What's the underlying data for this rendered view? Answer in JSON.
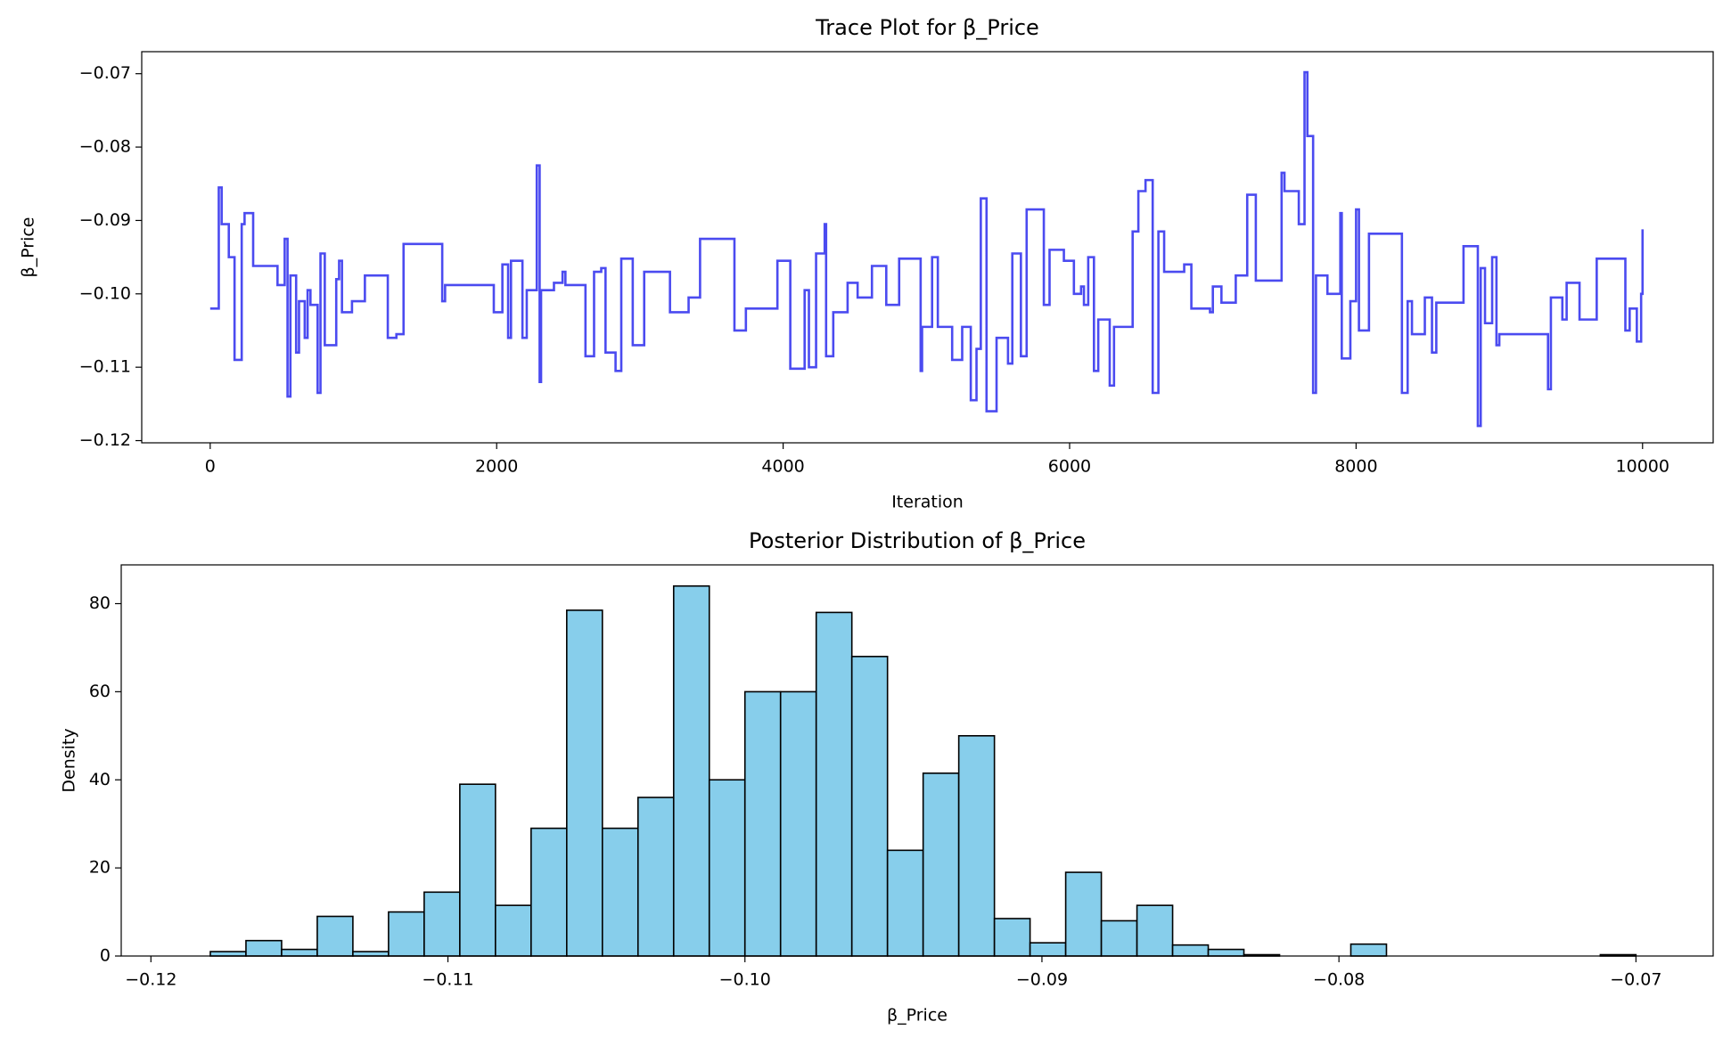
{
  "chart_data": [
    {
      "type": "line",
      "title": "Trace Plot for β_Price",
      "xlabel": "Iteration",
      "ylabel": "β_Price",
      "drawstyle": "steps-post",
      "color": "#4b4bf0",
      "xlim": [
        -478,
        10493
      ],
      "ylim": [
        -0.1203,
        -0.067
      ],
      "xticks": [
        0,
        2000,
        4000,
        6000,
        8000,
        10000
      ],
      "yticks": [
        {
          "value": -0.12,
          "label": "−0.12"
        },
        {
          "value": -0.11,
          "label": "−0.11"
        },
        {
          "value": -0.1,
          "label": "−0.10"
        },
        {
          "value": -0.09,
          "label": "−0.09"
        },
        {
          "value": -0.08,
          "label": "−0.08"
        },
        {
          "value": -0.07,
          "label": "−0.07"
        }
      ],
      "x": [
        0,
        60,
        80,
        130,
        170,
        220,
        240,
        300,
        470,
        520,
        540,
        560,
        600,
        620,
        660,
        680,
        700,
        750,
        770,
        800,
        880,
        900,
        920,
        990,
        1080,
        1240,
        1300,
        1350,
        1620,
        1640,
        1980,
        2040,
        2080,
        2100,
        2180,
        2210,
        2280,
        2300,
        2310,
        2400,
        2460,
        2480,
        2620,
        2680,
        2730,
        2760,
        2830,
        2870,
        2950,
        3030,
        3210,
        3340,
        3420,
        3660,
        3740,
        3960,
        4050,
        4150,
        4180,
        4230,
        4290,
        4300,
        4350,
        4450,
        4520,
        4620,
        4720,
        4810,
        4960,
        4970,
        5040,
        5080,
        5180,
        5250,
        5310,
        5350,
        5380,
        5420,
        5490,
        5570,
        5600,
        5660,
        5700,
        5820,
        5860,
        5960,
        6030,
        6080,
        6100,
        6130,
        6170,
        6200,
        6280,
        6310,
        6440,
        6480,
        6530,
        6580,
        6620,
        6660,
        6800,
        6850,
        6980,
        7000,
        7060,
        7160,
        7240,
        7300,
        7480,
        7500,
        7600,
        7640,
        7660,
        7700,
        7720,
        7800,
        7890,
        7900,
        7960,
        8000,
        8020,
        8090,
        8320,
        8360,
        8390,
        8480,
        8530,
        8560,
        8750,
        8850,
        8870,
        8900,
        8950,
        8980,
        9000,
        9340,
        9360,
        9440,
        9470,
        9560,
        9680,
        9880,
        9910,
        9960,
        9990,
        10000
      ],
      "values": [
        -0.102,
        -0.0855,
        -0.0905,
        -0.095,
        -0.109,
        -0.0905,
        -0.089,
        -0.0962,
        -0.0988,
        -0.0925,
        -0.114,
        -0.0975,
        -0.108,
        -0.101,
        -0.106,
        -0.0995,
        -0.1015,
        -0.1135,
        -0.0945,
        -0.107,
        -0.098,
        -0.0955,
        -0.1025,
        -0.101,
        -0.0975,
        -0.106,
        -0.1055,
        -0.0932,
        -0.101,
        -0.0988,
        -0.1025,
        -0.096,
        -0.106,
        -0.0955,
        -0.106,
        -0.0995,
        -0.0825,
        -0.112,
        -0.0995,
        -0.0985,
        -0.097,
        -0.0988,
        -0.1085,
        -0.097,
        -0.0965,
        -0.108,
        -0.1105,
        -0.0952,
        -0.107,
        -0.097,
        -0.1025,
        -0.1005,
        -0.0925,
        -0.105,
        -0.102,
        -0.0955,
        -0.1102,
        -0.0995,
        -0.11,
        -0.0945,
        -0.0905,
        -0.1085,
        -0.1025,
        -0.0985,
        -0.1005,
        -0.0962,
        -0.1015,
        -0.0952,
        -0.1105,
        -0.1045,
        -0.095,
        -0.1045,
        -0.109,
        -0.1045,
        -0.1145,
        -0.1075,
        -0.087,
        -0.116,
        -0.106,
        -0.1095,
        -0.0945,
        -0.1085,
        -0.0885,
        -0.1015,
        -0.094,
        -0.0955,
        -0.1,
        -0.099,
        -0.1015,
        -0.095,
        -0.1105,
        -0.1035,
        -0.1125,
        -0.1045,
        -0.0915,
        -0.086,
        -0.0845,
        -0.1135,
        -0.0915,
        -0.097,
        -0.096,
        -0.102,
        -0.1025,
        -0.099,
        -0.1012,
        -0.0975,
        -0.0865,
        -0.0982,
        -0.0835,
        -0.086,
        -0.0905,
        -0.0698,
        -0.0785,
        -0.1135,
        -0.0975,
        -0.1,
        -0.089,
        -0.1088,
        -0.101,
        -0.0885,
        -0.105,
        -0.0918,
        -0.1135,
        -0.101,
        -0.1055,
        -0.1005,
        -0.108,
        -0.1012,
        -0.0935,
        -0.118,
        -0.0965,
        -0.104,
        -0.095,
        -0.107,
        -0.1055,
        -0.113,
        -0.1005,
        -0.1035,
        -0.0985,
        -0.1035,
        -0.0952,
        -0.105,
        -0.102,
        -0.1065,
        -0.1,
        -0.0912
      ]
    },
    {
      "type": "histogram",
      "title": "Posterior Distribution of β_Price",
      "xlabel": "β_Price",
      "ylabel": "Density",
      "color": "#87ceeb",
      "edgecolor": "#000000",
      "xlim": [
        -0.121,
        -0.0674
      ],
      "ylim": [
        0,
        88.8
      ],
      "xticks": [
        {
          "value": -0.12,
          "label": "−0.12"
        },
        {
          "value": -0.11,
          "label": "−0.11"
        },
        {
          "value": -0.1,
          "label": "−0.10"
        },
        {
          "value": -0.09,
          "label": "−0.09"
        },
        {
          "value": -0.08,
          "label": "−0.08"
        },
        {
          "value": -0.07,
          "label": "−0.07"
        }
      ],
      "yticks": [
        0,
        20,
        40,
        60,
        80
      ],
      "bins": [
        -0.118,
        -0.1168,
        -0.1156,
        -0.1144,
        -0.1132,
        -0.112,
        -0.1108,
        -0.1096,
        -0.1084,
        -0.1072,
        -0.106,
        -0.1048,
        -0.1036,
        -0.1024,
        -0.1012,
        -0.1,
        -0.0988,
        -0.0976,
        -0.0964,
        -0.0952,
        -0.094,
        -0.0928,
        -0.0916,
        -0.0904,
        -0.0892,
        -0.088,
        -0.0868,
        -0.0856,
        -0.0844,
        -0.0832,
        -0.082,
        -0.0808,
        -0.0796,
        -0.0784,
        -0.0772,
        -0.076,
        -0.0748,
        -0.0736,
        -0.0724,
        -0.0712,
        -0.07
      ],
      "values": [
        1,
        3.5,
        1.5,
        9,
        1,
        10,
        14.5,
        39,
        11.5,
        29,
        78.5,
        29,
        36,
        84,
        40,
        60,
        60,
        78,
        68,
        24,
        41.5,
        50,
        8.5,
        3,
        19,
        8,
        11.5,
        2.5,
        1.5,
        0.3,
        0,
        0,
        2.7,
        0,
        0,
        0,
        0,
        0,
        0,
        0.3
      ]
    }
  ]
}
